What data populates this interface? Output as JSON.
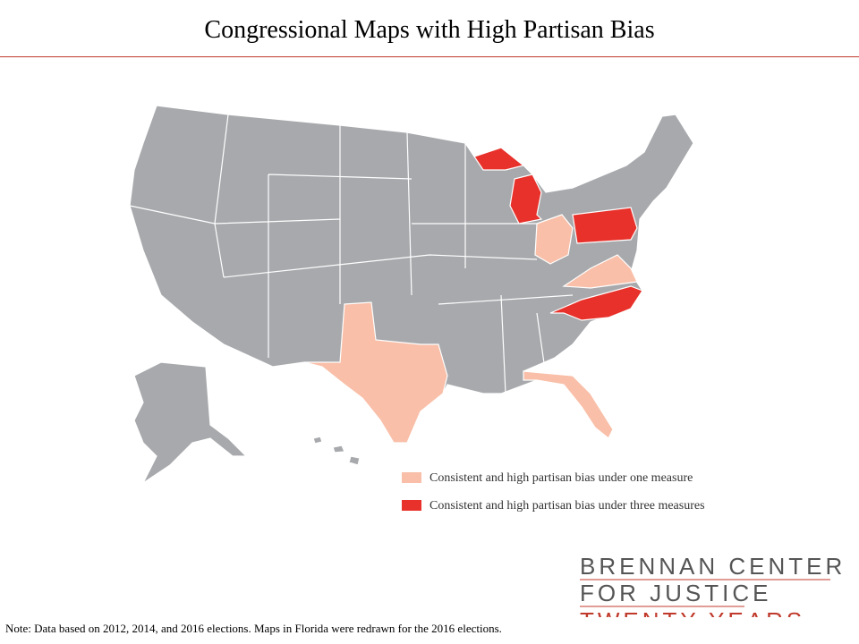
{
  "header": {
    "title": "Congressional  Maps with High Partisan Bias"
  },
  "legend": {
    "items": [
      {
        "label": "Consistent and high partisan bias under one measure",
        "color": "#f9bfa8"
      },
      {
        "label": "Consistent and high partisan bias under three measures",
        "color": "#e8312b"
      }
    ]
  },
  "logo": {
    "lines": [
      "BRENNAN CENTER",
      "FOR JUSTICE",
      "TWENTY YEARS"
    ]
  },
  "note": "Note: Data based on 2012, 2014, and 2016 elections. Maps in Florida were redrawn for the 2016 elections."
}
